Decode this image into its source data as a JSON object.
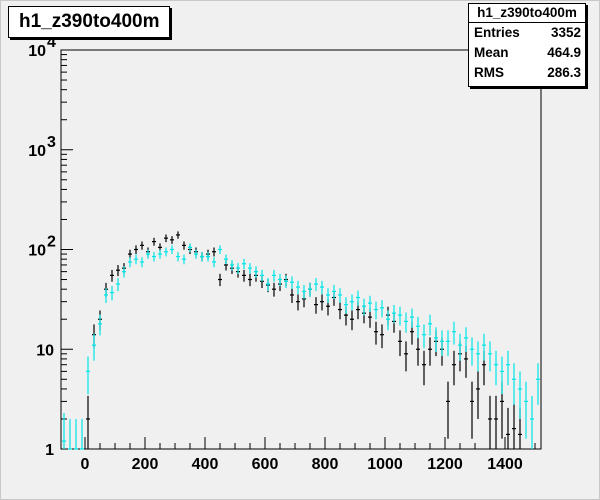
{
  "chart_data": {
    "type": "histogram",
    "title": "h1_z390to400m",
    "stats": {
      "title": "h1_z390to400m",
      "rows": [
        {
          "key": "Entries",
          "value": "3352"
        },
        {
          "key": "Mean",
          "value": "464.9"
        },
        {
          "key": "RMS",
          "value": "286.3"
        }
      ]
    },
    "xlim": [
      -80,
      1520
    ],
    "ylim": [
      1,
      10000
    ],
    "y_scale": "log",
    "x_tick_labels": [
      "0",
      "200",
      "400",
      "600",
      "800",
      "1000",
      "1200",
      "1400"
    ],
    "y_tick_labels": [
      {
        "base": "1",
        "exp": ""
      },
      {
        "base": "10",
        "exp": ""
      },
      {
        "base": "10",
        "exp": "2"
      },
      {
        "base": "10",
        "exp": "3"
      },
      {
        "base": "10",
        "exp": "4"
      }
    ],
    "bin_width": 20,
    "series": [
      {
        "color": "#000000",
        "x": [
          10,
          30,
          50,
          70,
          90,
          110,
          130,
          150,
          170,
          190,
          210,
          230,
          250,
          270,
          290,
          310,
          330,
          350,
          370,
          390,
          410,
          430,
          450,
          470,
          490,
          510,
          530,
          550,
          570,
          590,
          610,
          630,
          650,
          670,
          690,
          710,
          730,
          750,
          770,
          790,
          810,
          830,
          850,
          870,
          890,
          910,
          930,
          950,
          970,
          990,
          1010,
          1030,
          1050,
          1070,
          1090,
          1110,
          1130,
          1150,
          1170,
          1190,
          1210,
          1230,
          1250,
          1270,
          1290,
          1310,
          1330,
          1350,
          1370,
          1390,
          1410,
          1430,
          1450
        ],
        "values": [
          2,
          14,
          20,
          40,
          55,
          62,
          65,
          90,
          100,
          110,
          95,
          120,
          105,
          130,
          125,
          140,
          110,
          100,
          95,
          85,
          90,
          95,
          50,
          70,
          65,
          60,
          55,
          50,
          55,
          48,
          44,
          40,
          45,
          50,
          35,
          30,
          32,
          40,
          28,
          30,
          27,
          33,
          25,
          22,
          20,
          25,
          23,
          21,
          15,
          14,
          22,
          19,
          12,
          9,
          15,
          10,
          7,
          10,
          12,
          10,
          3,
          7,
          9,
          8,
          3,
          4,
          7,
          2,
          2,
          3,
          1.4,
          1.6,
          1.4
        ]
      },
      {
        "color": "#00e5e5",
        "x": [
          -70,
          -50,
          -30,
          -10,
          10,
          30,
          50,
          70,
          90,
          110,
          130,
          150,
          170,
          190,
          210,
          230,
          250,
          270,
          290,
          310,
          330,
          350,
          370,
          390,
          410,
          430,
          450,
          470,
          490,
          510,
          530,
          550,
          570,
          590,
          610,
          630,
          650,
          670,
          690,
          710,
          730,
          750,
          770,
          790,
          810,
          830,
          850,
          870,
          890,
          910,
          930,
          950,
          970,
          990,
          1010,
          1030,
          1050,
          1070,
          1090,
          1110,
          1130,
          1150,
          1170,
          1190,
          1210,
          1230,
          1250,
          1270,
          1290,
          1310,
          1330,
          1350,
          1370,
          1390,
          1410,
          1430,
          1450,
          1470,
          1490,
          1510
        ],
        "values": [
          1.2,
          1,
          1,
          1,
          6,
          11,
          18,
          35,
          37,
          45,
          60,
          75,
          80,
          75,
          90,
          85,
          90,
          95,
          100,
          85,
          80,
          105,
          90,
          85,
          85,
          75,
          100,
          80,
          70,
          65,
          72,
          65,
          60,
          55,
          45,
          55,
          50,
          48,
          47,
          42,
          38,
          40,
          45,
          42,
          35,
          38,
          35,
          28,
          30,
          33,
          27,
          29,
          25,
          26,
          20,
          23,
          22,
          19,
          21,
          17,
          14,
          18,
          13,
          12,
          12,
          15,
          11,
          13,
          10,
          9,
          11,
          9,
          7,
          6,
          7,
          5,
          4,
          3,
          2,
          5
        ]
      }
    ]
  }
}
